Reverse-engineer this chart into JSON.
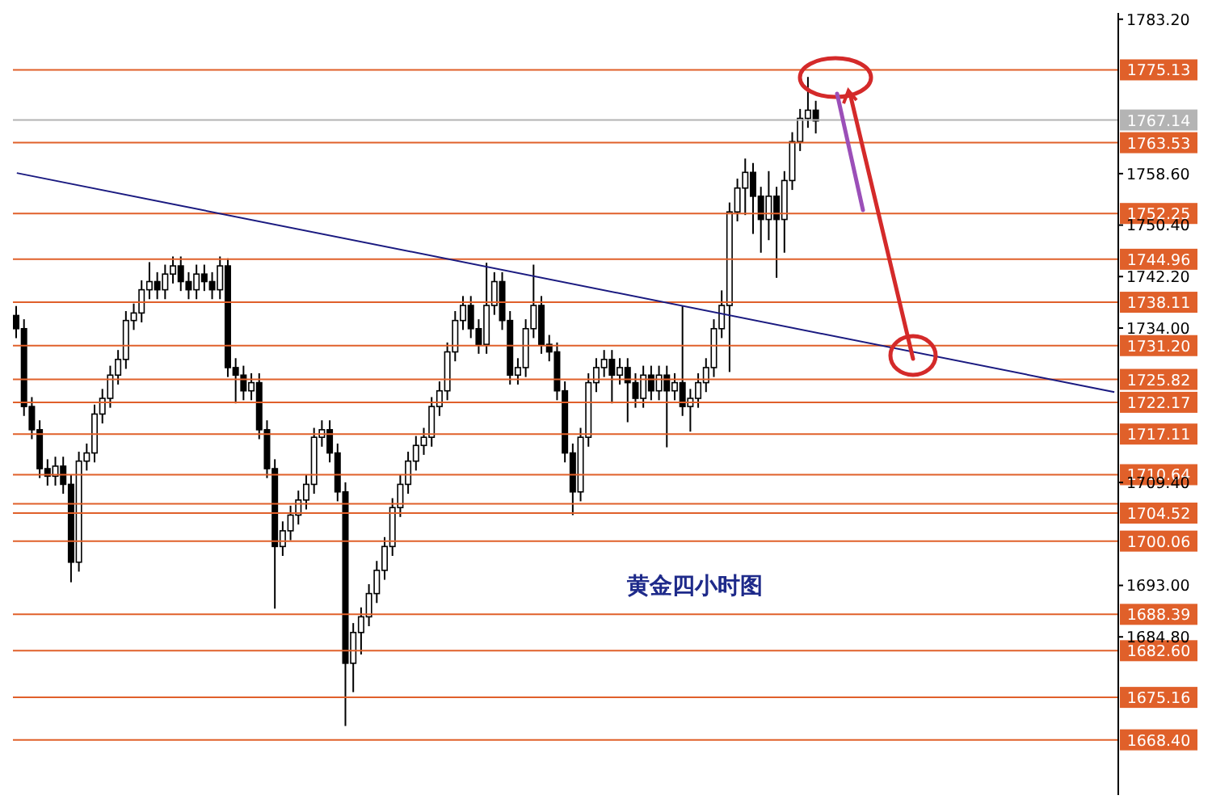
{
  "chart_data": {
    "type": "candlestick",
    "title": "黄金四小时图",
    "categories": [
      null,
      null,
      null,
      null,
      null,
      null,
      null,
      null,
      null,
      null,
      null,
      null,
      null,
      null,
      null,
      null,
      null,
      null,
      null,
      null,
      null,
      null,
      null,
      null,
      null,
      null,
      null,
      null,
      null,
      null,
      null,
      null,
      null,
      null,
      null,
      null,
      null,
      null,
      null,
      null,
      null,
      null,
      null,
      null,
      null,
      null,
      null,
      null,
      null,
      null,
      null,
      null,
      null,
      null,
      null,
      null,
      null,
      null,
      null,
      null,
      null,
      null,
      null,
      null,
      null,
      null,
      null,
      null,
      null,
      null,
      null,
      null,
      null,
      null,
      null,
      null,
      null,
      null,
      null,
      null,
      null,
      null,
      null,
      null,
      null,
      null,
      null,
      null,
      null,
      null,
      null,
      null,
      null,
      null,
      null,
      null,
      null,
      null,
      null,
      null,
      null,
      null,
      null,
      null,
      null,
      null,
      null,
      null,
      null,
      null,
      null,
      null,
      null,
      null,
      null,
      null,
      null,
      null,
      null,
      null,
      null,
      null,
      null,
      null,
      null,
      null,
      null,
      null,
      null,
      null,
      null,
      null,
      null,
      null,
      null,
      null,
      null,
      null,
      null,
      null,
      null
    ],
    "series": [
      {
        "color": "#000000",
        "ohlc": [
          [
            1736,
            1737.5,
            1732.4,
            1733.9
          ],
          [
            1733.9,
            1735.4,
            1720,
            1721.5
          ],
          [
            1721.5,
            1723,
            1716.3,
            1717.8
          ],
          [
            1717.8,
            1719.3,
            1710.1,
            1711.6
          ],
          [
            1711.6,
            1713.1,
            1708.9,
            1710.4
          ],
          [
            1710.4,
            1713.5,
            1708.9,
            1712
          ],
          [
            1712,
            1713.5,
            1707.6,
            1709.1
          ],
          [
            1709.1,
            1710.6,
            1693.5,
            1696.7
          ],
          [
            1696.7,
            1714.3,
            1695.2,
            1712.8
          ],
          [
            1712.8,
            1715.6,
            1711.3,
            1714.1
          ],
          [
            1714.1,
            1721.8,
            1712.6,
            1720.3
          ],
          [
            1720.3,
            1724.3,
            1718.8,
            1722.8
          ],
          [
            1722.8,
            1728,
            1721.3,
            1726.5
          ],
          [
            1726.5,
            1730.5,
            1725,
            1729
          ],
          [
            1729,
            1736.7,
            1727.5,
            1735.2
          ],
          [
            1735.2,
            1737.9,
            1733.7,
            1736.4
          ],
          [
            1736.4,
            1741.6,
            1734.9,
            1740.1
          ],
          [
            1740.1,
            1744.5,
            1738.6,
            1741.4
          ],
          [
            1741.4,
            1742.9,
            1738.6,
            1740.1
          ],
          [
            1740.1,
            1744.1,
            1738.6,
            1742.6
          ],
          [
            1742.6,
            1745.4,
            1741.1,
            1743.9
          ],
          [
            1743.9,
            1745.4,
            1739.9,
            1741.4
          ],
          [
            1741.4,
            1742.9,
            1738.6,
            1740.1
          ],
          [
            1740.1,
            1744.1,
            1738.6,
            1742.6
          ],
          [
            1742.6,
            1744.1,
            1739.9,
            1741.4
          ],
          [
            1741.4,
            1742.9,
            1738.6,
            1740.1
          ],
          [
            1740.1,
            1745.4,
            1738.6,
            1743.9
          ],
          [
            1743.9,
            1745.1,
            1726.2,
            1727.7
          ],
          [
            1727.7,
            1729.2,
            1722,
            1726.5
          ],
          [
            1726.5,
            1728,
            1722.5,
            1724
          ],
          [
            1724,
            1726.8,
            1722.5,
            1725.3
          ],
          [
            1725.3,
            1726.8,
            1716.3,
            1717.8
          ],
          [
            1717.8,
            1719.3,
            1710.1,
            1711.6
          ],
          [
            1711.6,
            1713.1,
            1689.3,
            1699.2
          ],
          [
            1699.2,
            1703.2,
            1697.7,
            1701.7
          ],
          [
            1701.7,
            1705.7,
            1700.2,
            1704.2
          ],
          [
            1704.2,
            1708.1,
            1702.7,
            1706.6
          ],
          [
            1706.6,
            1710.6,
            1705.1,
            1709.1
          ],
          [
            1709.1,
            1718.1,
            1707.6,
            1716.6
          ],
          [
            1716.6,
            1719.3,
            1715.1,
            1717.8
          ],
          [
            1717.8,
            1719.3,
            1712.6,
            1714.1
          ],
          [
            1714.1,
            1715.6,
            1706.4,
            1707.9
          ],
          [
            1707.9,
            1709.4,
            1670.6,
            1680.6
          ],
          [
            1680.6,
            1687,
            1676,
            1685.5
          ],
          [
            1685.5,
            1689.5,
            1682,
            1688
          ],
          [
            1688,
            1693.2,
            1686.5,
            1691.7
          ],
          [
            1691.7,
            1696.9,
            1690.2,
            1695.4
          ],
          [
            1695.4,
            1700.7,
            1693.9,
            1699.2
          ],
          [
            1699.2,
            1706.9,
            1697.7,
            1705.4
          ],
          [
            1705.4,
            1710.6,
            1703.9,
            1709.1
          ],
          [
            1709.1,
            1714.3,
            1707.6,
            1712.8
          ],
          [
            1712.8,
            1716.8,
            1711.3,
            1715.3
          ],
          [
            1715.3,
            1718.1,
            1713.8,
            1716.6
          ],
          [
            1716.6,
            1723,
            1715.1,
            1721.5
          ],
          [
            1721.5,
            1725.5,
            1720,
            1724
          ],
          [
            1724,
            1731.7,
            1722.5,
            1730.2
          ],
          [
            1730.2,
            1736.7,
            1728.7,
            1735.2
          ],
          [
            1735.2,
            1739.1,
            1733.7,
            1737.6
          ],
          [
            1737.6,
            1739.1,
            1732.4,
            1733.9
          ],
          [
            1733.9,
            1735.4,
            1729.9,
            1731.4
          ],
          [
            1731.4,
            1744.4,
            1729.9,
            1737.6
          ],
          [
            1737.6,
            1742.9,
            1736.1,
            1741.4
          ],
          [
            1741.4,
            1742.9,
            1733.7,
            1735.2
          ],
          [
            1735.2,
            1736.7,
            1725,
            1726.5
          ],
          [
            1726.5,
            1729.2,
            1725,
            1727.7
          ],
          [
            1727.7,
            1735.4,
            1726.2,
            1733.9
          ],
          [
            1733.9,
            1744.1,
            1732.4,
            1737.6
          ],
          [
            1737.6,
            1739.1,
            1729.9,
            1731.4
          ],
          [
            1731.4,
            1732.9,
            1728.7,
            1730.2
          ],
          [
            1730.2,
            1731.7,
            1722.5,
            1724
          ],
          [
            1724,
            1725.5,
            1712.6,
            1714.1
          ],
          [
            1714.1,
            1715.6,
            1704.2,
            1707.9
          ],
          [
            1707.9,
            1718.1,
            1706.4,
            1716.6
          ],
          [
            1716.6,
            1726.8,
            1715.1,
            1725.3
          ],
          [
            1725.3,
            1729.2,
            1723.8,
            1727.7
          ],
          [
            1727.7,
            1730.5,
            1726.2,
            1729
          ],
          [
            1729,
            1730.5,
            1722,
            1726.5
          ],
          [
            1726.5,
            1729.2,
            1725,
            1727.7
          ],
          [
            1727.7,
            1729.2,
            1719,
            1725.3
          ],
          [
            1725.3,
            1726.8,
            1721.3,
            1722.8
          ],
          [
            1722.8,
            1728,
            1721.3,
            1726.5
          ],
          [
            1726.5,
            1728,
            1722.5,
            1724
          ],
          [
            1724,
            1728,
            1722.5,
            1726.5
          ],
          [
            1726.5,
            1728,
            1715,
            1724
          ],
          [
            1724,
            1726.8,
            1722.5,
            1725.3
          ],
          [
            1725.3,
            1737.6,
            1720,
            1721.5
          ],
          [
            1721.5,
            1724.3,
            1717.5,
            1722.8
          ],
          [
            1722.8,
            1726.8,
            1721.3,
            1725.3
          ],
          [
            1725.3,
            1729.2,
            1723.8,
            1727.7
          ],
          [
            1727.7,
            1735.4,
            1726.2,
            1733.9
          ],
          [
            1733.9,
            1740,
            1732.4,
            1737.6
          ],
          [
            1737.6,
            1754,
            1727,
            1752.5
          ],
          [
            1752.5,
            1757.8,
            1751,
            1756.3
          ],
          [
            1756.3,
            1761,
            1752,
            1758.8
          ],
          [
            1758.8,
            1760.3,
            1749,
            1755
          ],
          [
            1755,
            1756.5,
            1746,
            1751.3
          ],
          [
            1751.3,
            1759,
            1748,
            1755
          ],
          [
            1755,
            1756.5,
            1742,
            1751.3
          ],
          [
            1751.3,
            1759,
            1746,
            1757.5
          ],
          [
            1757.5,
            1765.2,
            1756,
            1763.7
          ],
          [
            1763.7,
            1768.9,
            1762.2,
            1767.4
          ],
          [
            1767.4,
            1774,
            1765.9,
            1768.7
          ],
          [
            1768.7,
            1770.2,
            1765,
            1767
          ],
          null,
          null,
          null,
          null,
          null,
          null,
          null,
          null,
          null,
          null,
          null,
          null,
          null,
          null,
          null,
          null,
          null,
          null,
          null,
          null,
          null,
          null,
          null,
          null,
          null,
          null,
          null,
          null,
          null,
          null,
          null,
          null,
          null,
          null,
          null,
          null,
          null,
          null
        ]
      },
      {
        "type": "line",
        "color": "#1a1a80",
        "values": [
          1758.7,
          null,
          null,
          null,
          null,
          null,
          null,
          null,
          null,
          null,
          null,
          null,
          null,
          null,
          null,
          null,
          null,
          null,
          null,
          null,
          null,
          null,
          null,
          null,
          null,
          null,
          null,
          null,
          null,
          null,
          null,
          null,
          null,
          null,
          null,
          null,
          null,
          null,
          null,
          null,
          null,
          null,
          null,
          null,
          null,
          null,
          null,
          null,
          null,
          null,
          null,
          null,
          null,
          null,
          null,
          null,
          null,
          null,
          null,
          null,
          null,
          null,
          null,
          null,
          null,
          null,
          null,
          null,
          null,
          null,
          null,
          null,
          null,
          null,
          null,
          null,
          null,
          null,
          null,
          null,
          null,
          null,
          null,
          null,
          null,
          null,
          null,
          null,
          null,
          null,
          null,
          null,
          null,
          null,
          null,
          null,
          null,
          null,
          null,
          null,
          null,
          null,
          null,
          null,
          null,
          null,
          null,
          null,
          null,
          null,
          null,
          null,
          null,
          null,
          null,
          null,
          null,
          null,
          null,
          null,
          null,
          null,
          null,
          null,
          null,
          null,
          null,
          null,
          null,
          null,
          null,
          null,
          null,
          null,
          null,
          null,
          null,
          null,
          null,
          null,
          1723.8
        ]
      }
    ],
    "ylim": [
      1659.6,
      1784.2
    ],
    "yticks": [
      {
        "value": 1783.2,
        "label": "1783.20"
      },
      {
        "value": 1758.6,
        "label": "1758.60"
      },
      {
        "value": 1750.4,
        "label": "1750.40"
      },
      {
        "value": 1742.2,
        "label": "1742.20"
      },
      {
        "value": 1734.0,
        "label": "1734.00"
      },
      {
        "value": 1709.4,
        "label": "1709.40"
      },
      {
        "value": 1693.0,
        "label": "1693.00"
      },
      {
        "value": 1684.8,
        "label": "1684.80"
      }
    ],
    "tick_labels": "y",
    "ref_lines": [
      {
        "axis": "y",
        "value": 1775.13,
        "label": "1775.13",
        "color": "#e0602a"
      },
      {
        "axis": "y",
        "value": 1767.14,
        "label": "1767.14",
        "color": "#b4b4b4"
      },
      {
        "axis": "y",
        "value": 1763.53,
        "label": "1763.53",
        "color": "#e0602a"
      },
      {
        "axis": "y",
        "value": 1752.25,
        "label": "1752.25",
        "color": "#e0602a"
      },
      {
        "axis": "y",
        "value": 1744.96,
        "label": "1744.96",
        "color": "#e0602a"
      },
      {
        "axis": "y",
        "value": 1738.11,
        "label": "1738.11",
        "color": "#e0602a"
      },
      {
        "axis": "y",
        "value": 1731.2,
        "label": "1731.20",
        "color": "#e0602a"
      },
      {
        "axis": "y",
        "value": 1725.82,
        "label": "1725.82",
        "color": "#e0602a"
      },
      {
        "axis": "y",
        "value": 1722.17,
        "label": "1722.17",
        "color": "#e0602a"
      },
      {
        "axis": "y",
        "value": 1717.11,
        "label": "1717.11",
        "color": "#e0602a"
      },
      {
        "axis": "y",
        "value": 1710.64,
        "label": "1710.64",
        "color": "#e0602a"
      },
      {
        "axis": "y",
        "value": 1706.0,
        "label": null,
        "color": "#e0602a"
      },
      {
        "axis": "y",
        "value": 1704.52,
        "label": "1704.52",
        "color": "#e0602a"
      },
      {
        "axis": "y",
        "value": 1700.06,
        "label": "1700.06",
        "color": "#e0602a"
      },
      {
        "axis": "y",
        "value": 1688.39,
        "label": "1688.39",
        "color": "#e0602a"
      },
      {
        "axis": "y",
        "value": 1682.6,
        "label": "1682.60",
        "color": "#e0602a"
      },
      {
        "axis": "y",
        "value": 1675.16,
        "label": "1675.16",
        "color": "#e0602a"
      },
      {
        "axis": "y",
        "value": 1668.4,
        "label": "1668.40",
        "color": "#e0602a"
      }
    ]
  }
}
